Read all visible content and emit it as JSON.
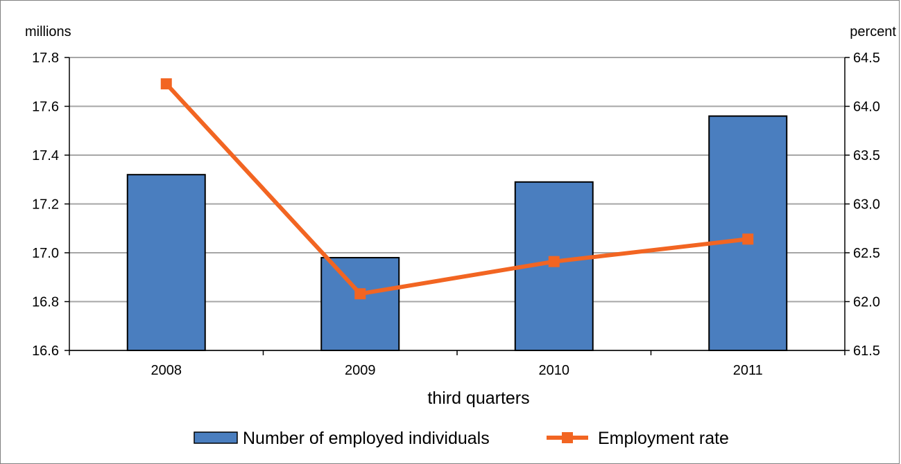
{
  "chart_data": {
    "type": "bar",
    "categories": [
      "2008",
      "2009",
      "2010",
      "2011"
    ],
    "xlabel": "third quarters",
    "y_left": {
      "unit": "millions",
      "ylim": [
        16.6,
        17.8
      ],
      "ticks": [
        "16.6",
        "16.8",
        "17.0",
        "17.2",
        "17.4",
        "17.6",
        "17.8"
      ]
    },
    "y_right": {
      "unit": "percent",
      "ylim": [
        61.5,
        64.5
      ],
      "ticks": [
        "61.5",
        "62.0",
        "62.5",
        "63.0",
        "63.5",
        "64.0",
        "64.5"
      ]
    },
    "series": [
      {
        "name": "Number of employed individuals",
        "type": "bar",
        "axis": "left",
        "values": [
          17.32,
          16.98,
          17.29,
          17.56
        ],
        "color": "#4a7ebf"
      },
      {
        "name": "Employment rate",
        "type": "line",
        "axis": "right",
        "values": [
          64.23,
          62.08,
          62.41,
          62.64
        ],
        "color": "#f26522"
      }
    ],
    "grid": true,
    "legend_position": "bottom"
  }
}
